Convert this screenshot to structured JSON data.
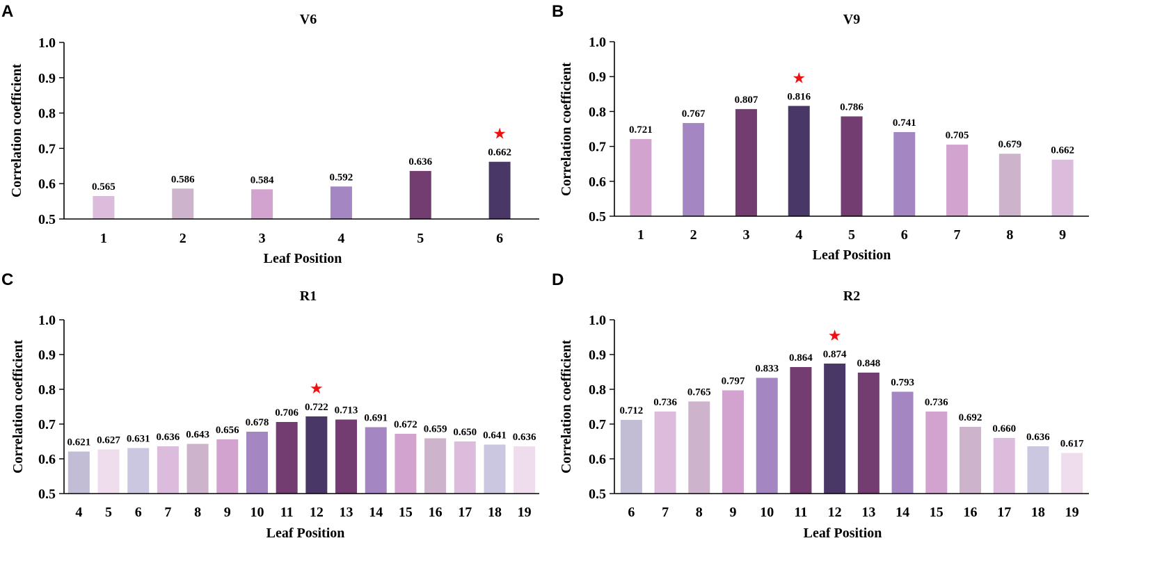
{
  "figure": {
    "panels": [
      {
        "letter": "A",
        "title": "V6"
      },
      {
        "letter": "B",
        "title": "V9"
      },
      {
        "letter": "C",
        "title": "R1"
      },
      {
        "letter": "D",
        "title": "R2"
      }
    ]
  },
  "chart_data": [
    {
      "type": "bar",
      "title": "V6",
      "xlabel": "Leaf Position",
      "ylabel": "Correlation coefficient",
      "ylim": [
        0.5,
        1.0
      ],
      "yticks": [
        "0.5",
        "0.6",
        "0.7",
        "0.8",
        "0.9",
        "1.0"
      ],
      "categories": [
        "1",
        "2",
        "3",
        "4",
        "5",
        "6"
      ],
      "values": [
        0.565,
        0.586,
        0.584,
        0.592,
        0.636,
        0.662
      ],
      "value_labels": [
        "0.565",
        "0.586",
        "0.584",
        "0.592",
        "0.636",
        "0.662"
      ],
      "colors": [
        "#dcbcdc",
        "#cdb3cb",
        "#d3a3cf",
        "#a386c2",
        "#733d72",
        "#493768"
      ],
      "highlight_index": 5,
      "highlight_symbol": "★"
    },
    {
      "type": "bar",
      "title": "V9",
      "xlabel": "Leaf Position",
      "ylabel": "Correlation coefficient",
      "ylim": [
        0.5,
        1.0
      ],
      "yticks": [
        "0.5",
        "0.6",
        "0.7",
        "0.8",
        "0.9",
        "1.0"
      ],
      "categories": [
        "1",
        "2",
        "3",
        "4",
        "5",
        "6",
        "7",
        "8",
        "9"
      ],
      "values": [
        0.721,
        0.767,
        0.807,
        0.816,
        0.786,
        0.741,
        0.705,
        0.679,
        0.662
      ],
      "value_labels": [
        "0.721",
        "0.767",
        "0.807",
        "0.816",
        "0.786",
        "0.741",
        "0.705",
        "0.679",
        "0.662"
      ],
      "colors": [
        "#d3a3cf",
        "#a386c2",
        "#733d72",
        "#493768",
        "#733d72",
        "#a386c2",
        "#d3a3cf",
        "#cdb3cb",
        "#dcbcdc"
      ],
      "highlight_index": 3,
      "highlight_symbol": "★"
    },
    {
      "type": "bar",
      "title": "R1",
      "xlabel": "Leaf Position",
      "ylabel": "Correlation coefficient",
      "ylim": [
        0.5,
        1.0
      ],
      "yticks": [
        "0.5",
        "0.6",
        "0.7",
        "0.8",
        "0.9",
        "1.0"
      ],
      "categories": [
        "4",
        "5",
        "6",
        "7",
        "8",
        "9",
        "10",
        "11",
        "12",
        "13",
        "14",
        "15",
        "16",
        "17",
        "18",
        "19"
      ],
      "values": [
        0.621,
        0.627,
        0.631,
        0.636,
        0.643,
        0.656,
        0.678,
        0.706,
        0.722,
        0.713,
        0.691,
        0.672,
        0.659,
        0.65,
        0.641,
        0.636
      ],
      "value_labels": [
        "0.621",
        "0.627",
        "0.631",
        "0.636",
        "0.643",
        "0.656",
        "0.678",
        "0.706",
        "0.722",
        "0.713",
        "0.691",
        "0.672",
        "0.659",
        "0.650",
        "0.641",
        "0.636"
      ],
      "colors": [
        "#c2bcd4",
        "#efdcec",
        "#cbc7e0",
        "#dcbcdc",
        "#cdb3cb",
        "#d3a3cf",
        "#a386c2",
        "#733d72",
        "#493768",
        "#733d72",
        "#a386c2",
        "#d3a3cf",
        "#cdb3cb",
        "#dcbcdc",
        "#cbc7e0",
        "#efdcec"
      ],
      "highlight_index": 8,
      "highlight_symbol": "★"
    },
    {
      "type": "bar",
      "title": "R2",
      "xlabel": "Leaf Position",
      "ylabel": "Correlation coefficient",
      "ylim": [
        0.5,
        1.0
      ],
      "yticks": [
        "0.5",
        "0.6",
        "0.7",
        "0.8",
        "0.9",
        "1.0"
      ],
      "categories": [
        "6",
        "7",
        "8",
        "9",
        "10",
        "11",
        "12",
        "13",
        "14",
        "15",
        "16",
        "17",
        "18",
        "19"
      ],
      "values": [
        0.712,
        0.736,
        0.765,
        0.797,
        0.833,
        0.864,
        0.874,
        0.848,
        0.793,
        0.736,
        0.692,
        0.66,
        0.636,
        0.617
      ],
      "value_labels": [
        "0.712",
        "0.736",
        "0.765",
        "0.797",
        "0.833",
        "0.864",
        "0.874",
        "0.848",
        "0.793",
        "0.736",
        "0.692",
        "0.660",
        "0.636",
        "0.617"
      ],
      "colors": [
        "#c2bcd4",
        "#dcbcdc",
        "#cdb3cb",
        "#d3a3cf",
        "#a386c2",
        "#733d72",
        "#493768",
        "#733d72",
        "#a386c2",
        "#d3a3cf",
        "#cdb3cb",
        "#dcbcdc",
        "#cbc7e0",
        "#efdcec"
      ],
      "highlight_index": 6,
      "highlight_symbol": "★"
    }
  ]
}
